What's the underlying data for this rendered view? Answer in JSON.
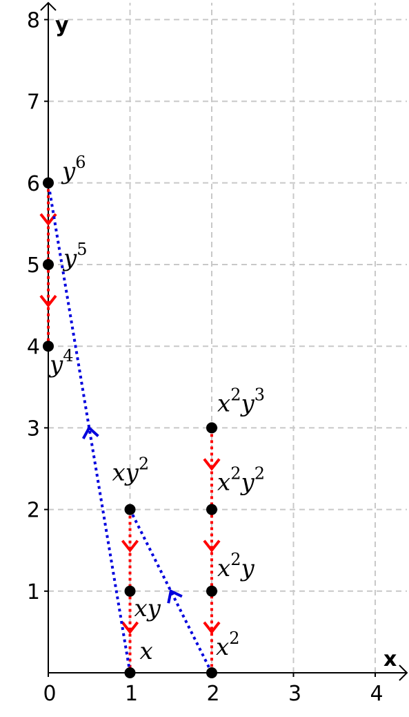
{
  "chart_data": {
    "type": "scatter",
    "title": "",
    "xlabel": "x",
    "ylabel": "y",
    "xlim": [
      0,
      4.3
    ],
    "ylim": [
      0,
      8.2
    ],
    "grid": true,
    "x_ticks": [
      "0",
      "1",
      "2",
      "3",
      "4"
    ],
    "y_ticks": [
      "1",
      "2",
      "3",
      "4",
      "5",
      "6",
      "7",
      "8"
    ],
    "colors": {
      "red_path": "#ff0000",
      "blue_path": "#0000dd",
      "grid": "#c8c8c8",
      "points": "#000000"
    },
    "points": [
      {
        "x": 0,
        "y": 6,
        "base": "y",
        "sup": "6"
      },
      {
        "x": 0,
        "y": 5,
        "base": "y",
        "sup": "5"
      },
      {
        "x": 0,
        "y": 4,
        "base": "y",
        "sup": "4"
      },
      {
        "x": 1,
        "y": 2,
        "base": "xy",
        "sup": "2"
      },
      {
        "x": 1,
        "y": 1,
        "base": "xy",
        "sup": ""
      },
      {
        "x": 1,
        "y": 0,
        "base": "x",
        "sup": ""
      },
      {
        "x": 2,
        "y": 3,
        "base": "x",
        "sup": "2",
        "base2": "y",
        "sup2": "3"
      },
      {
        "x": 2,
        "y": 2,
        "base": "x",
        "sup": "2",
        "base2": "y",
        "sup2": "2"
      },
      {
        "x": 2,
        "y": 1,
        "base": "x",
        "sup": "2",
        "base2": "y",
        "sup2": ""
      },
      {
        "x": 2,
        "y": 0,
        "base": "x",
        "sup": "2"
      }
    ],
    "red_paths": [
      [
        [
          0,
          6
        ],
        [
          0,
          4
        ]
      ],
      [
        [
          1,
          2
        ],
        [
          1,
          0
        ]
      ],
      [
        [
          2,
          3
        ],
        [
          2,
          0
        ]
      ]
    ],
    "red_arrows": [
      [
        0,
        5.5
      ],
      [
        0,
        4.5
      ],
      [
        1,
        1.5
      ],
      [
        1,
        0.5
      ],
      [
        2,
        2.5
      ],
      [
        2,
        1.5
      ],
      [
        2,
        0.5
      ]
    ],
    "blue_paths": [
      [
        [
          1,
          0
        ],
        [
          0,
          6
        ]
      ],
      [
        [
          2,
          0
        ],
        [
          1,
          2
        ]
      ]
    ],
    "blue_arrows": [
      [
        0.5,
        3
      ],
      [
        1.5,
        1
      ]
    ]
  }
}
